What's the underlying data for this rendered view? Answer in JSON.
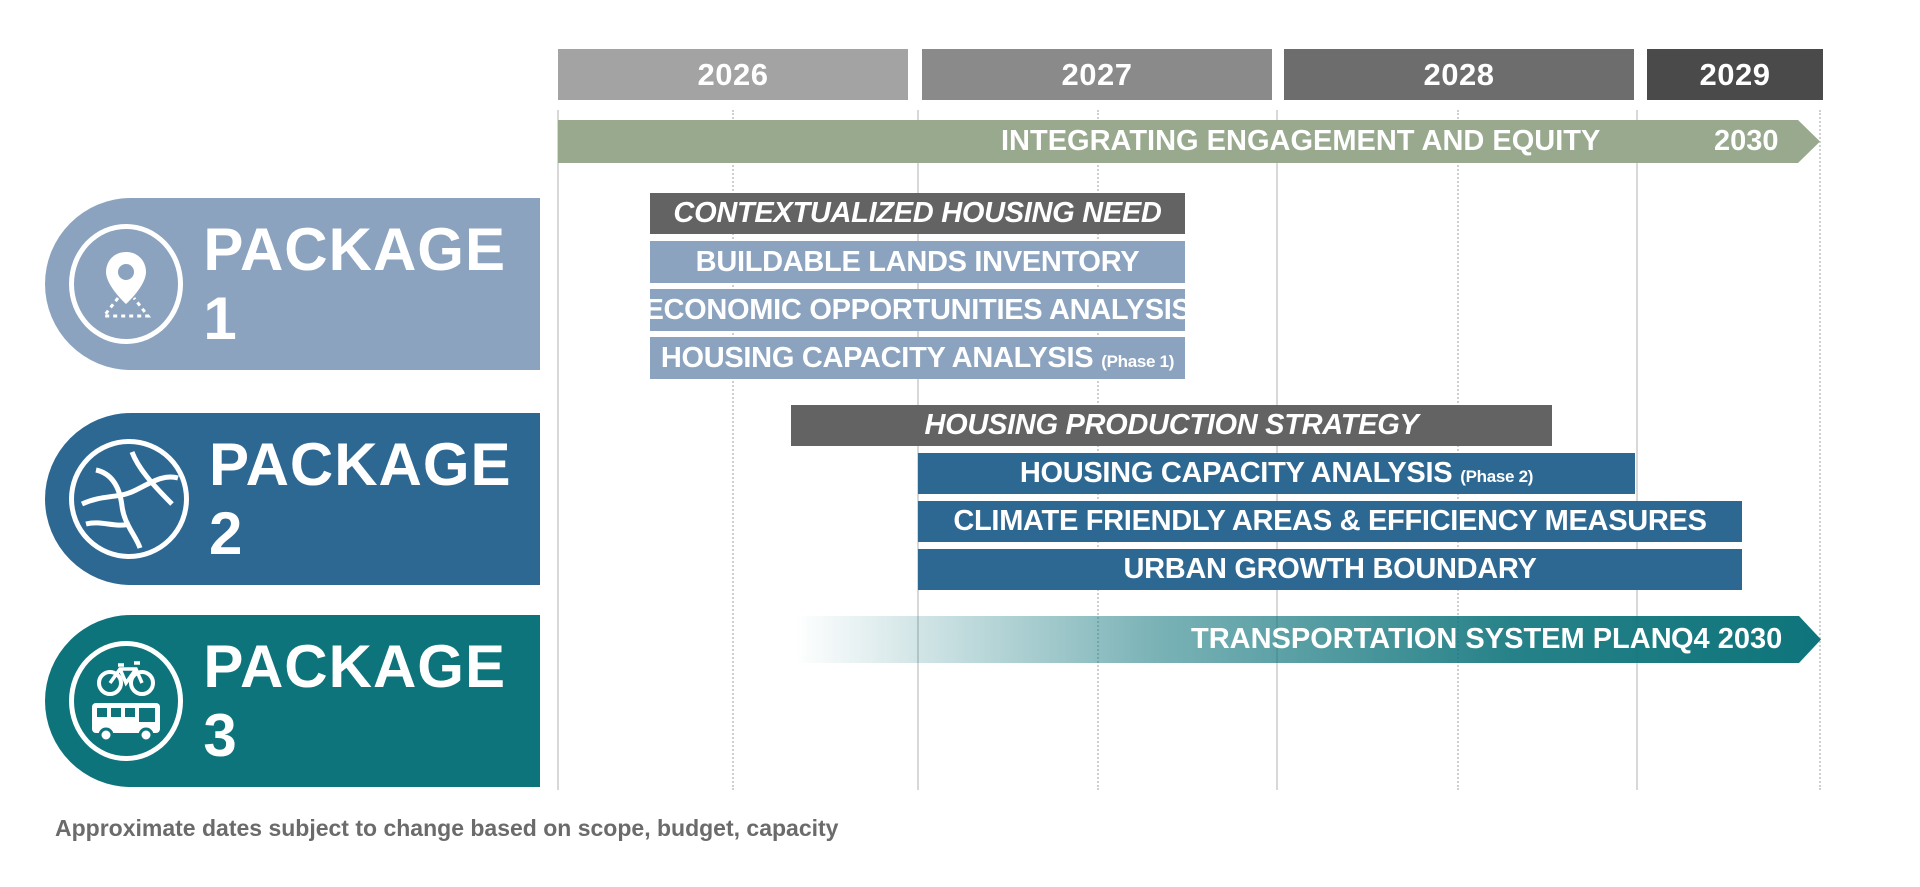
{
  "years": [
    "2026",
    "2027",
    "2028",
    "2029"
  ],
  "engagement": {
    "label": "INTEGRATING ENGAGEMENT AND EQUITY",
    "end": "2030"
  },
  "packages": [
    {
      "label": "PACKAGE 1",
      "icon": "map-pin-icon",
      "color": "#8ba3bf"
    },
    {
      "label": "PACKAGE 2",
      "icon": "map-icon",
      "color": "#2d6893"
    },
    {
      "label": "PACKAGE 3",
      "icon": "bike-bus-icon",
      "color": "#0e747b"
    }
  ],
  "tasks": {
    "p1_header": "CONTEXTUALIZED HOUSING NEED",
    "p1_t1": "BUILDABLE LANDS INVENTORY",
    "p1_t2": "ECONOMIC OPPORTUNITIES ANALYSIS",
    "p1_t3": "HOUSING CAPACITY ANALYSIS",
    "p1_t3_note": "(Phase 1)",
    "p2_header": "HOUSING PRODUCTION STRATEGY",
    "p2_t1": "HOUSING CAPACITY ANALYSIS",
    "p2_t1_note": "(Phase 2)",
    "p2_t2": "CLIMATE FRIENDLY AREAS & EFFICIENCY MEASURES",
    "p2_t3": "URBAN GROWTH BOUNDARY",
    "p3_t1": "TRANSPORTATION SYSTEM PLAN",
    "p3_t1_end": "Q4 2030"
  },
  "footnote": "Approximate dates subject to change based on scope, budget, capacity",
  "colors": {
    "year1": "#a3a3a3",
    "year2": "#8a8a8a",
    "year3": "#6d6d6d",
    "year4": "#4a4a4a",
    "engagement": "#98a98e",
    "gray": "#636363",
    "light_blue": "#8ba3bf",
    "dark_blue": "#2d6893",
    "teal": "#0e747b"
  }
}
